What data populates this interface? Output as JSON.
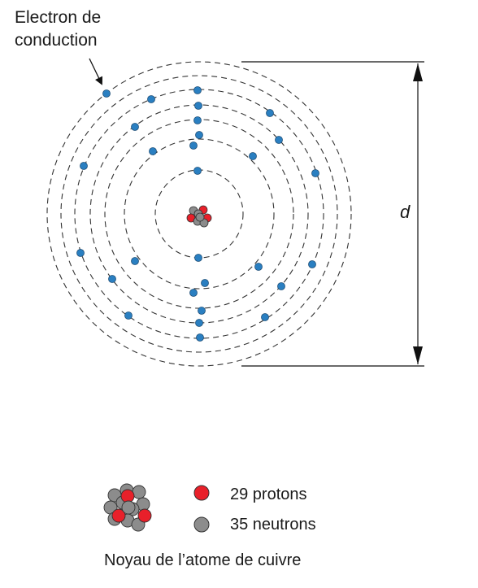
{
  "annotation": {
    "line1": "Electron de",
    "line2": "conduction"
  },
  "dimension_label": "d",
  "legend": {
    "protons": "29 protons",
    "neutrons": "35 neutrons",
    "proton_color": "#e8202a",
    "neutron_color": "#8c8c8c"
  },
  "caption": "Noyau de l’atome de cuivre",
  "colors": {
    "electron": "#2a7fc1",
    "orbit": "#333333",
    "line": "#111111"
  },
  "shells_count": 7,
  "electrons_count": 29
}
